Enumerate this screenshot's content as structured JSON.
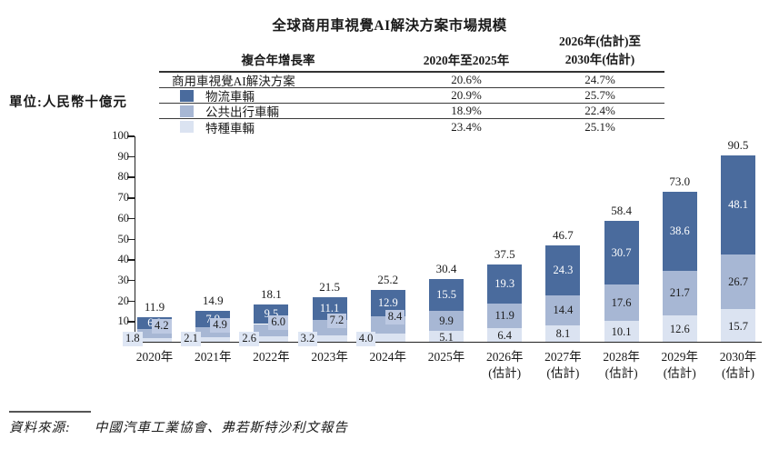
{
  "title": "全球商用車視覺AI解決方案市場規模",
  "unit_label": "單位:人民幣十億元",
  "cagr_table": {
    "header": {
      "col1": "複合年增長率",
      "col2": "2020年至2025年",
      "col3_line1": "2026年(估計)至",
      "col3_line2": "2030年(估計)"
    },
    "rows": [
      {
        "label": "商用車視覺AI解決方案",
        "c1": "20.6%",
        "c2": "24.7%",
        "swatch": null
      },
      {
        "label": "物流車輛",
        "c1": "20.9%",
        "c2": "25.7%",
        "swatch": "#4a6b9d"
      },
      {
        "label": "公共出行車輛",
        "c1": "18.9%",
        "c2": "22.4%",
        "swatch": "#a7b7d4"
      },
      {
        "label": "特種車輛",
        "c1": "23.4%",
        "c2": "25.1%",
        "swatch": "#dbe3f1"
      }
    ]
  },
  "chart_data": {
    "type": "bar",
    "stacked": true,
    "stack_order": "bottom-to-top",
    "title": "全球商用車視覺AI解決方案市場規模",
    "ylabel": "單位:人民幣十億元",
    "ylim": [
      0,
      100
    ],
    "ytick_step": 10,
    "grid": false,
    "legend_position": "in-table-left",
    "categories": [
      [
        "2020年"
      ],
      [
        "2021年"
      ],
      [
        "2022年"
      ],
      [
        "2023年"
      ],
      [
        "2024年"
      ],
      [
        "2025年"
      ],
      [
        "2026年",
        "(估計)"
      ],
      [
        "2027年",
        "(估計)"
      ],
      [
        "2028年",
        "(估計)"
      ],
      [
        "2029年",
        "(估計)"
      ],
      [
        "2030年",
        "(估計)"
      ]
    ],
    "series": [
      {
        "name": "特種車輛",
        "color": "#dbe3f1",
        "text_color": "#1a1a1a",
        "values": [
          1.8,
          2.1,
          2.6,
          3.2,
          4.0,
          5.1,
          6.4,
          8.1,
          10.1,
          12.6,
          15.7
        ]
      },
      {
        "name": "公共出行車輛",
        "color": "#a7b7d4",
        "text_color": "#1a1a1a",
        "values": [
          4.2,
          4.9,
          6.0,
          7.2,
          8.4,
          9.9,
          11.9,
          14.4,
          17.6,
          21.7,
          26.7
        ]
      },
      {
        "name": "物流車輛",
        "color": "#4a6b9d",
        "text_color": "#ffffff",
        "values": [
          6.0,
          7.9,
          9.5,
          11.1,
          12.9,
          15.5,
          19.3,
          24.3,
          30.7,
          38.6,
          48.1
        ]
      }
    ],
    "totals": [
      11.9,
      14.9,
      18.1,
      21.5,
      25.2,
      30.4,
      37.5,
      46.7,
      58.4,
      73.0,
      90.5
    ]
  },
  "source": {
    "prefix": "資料來源:",
    "text": "中國汽車工業協會、弗若斯特沙利文報告"
  }
}
